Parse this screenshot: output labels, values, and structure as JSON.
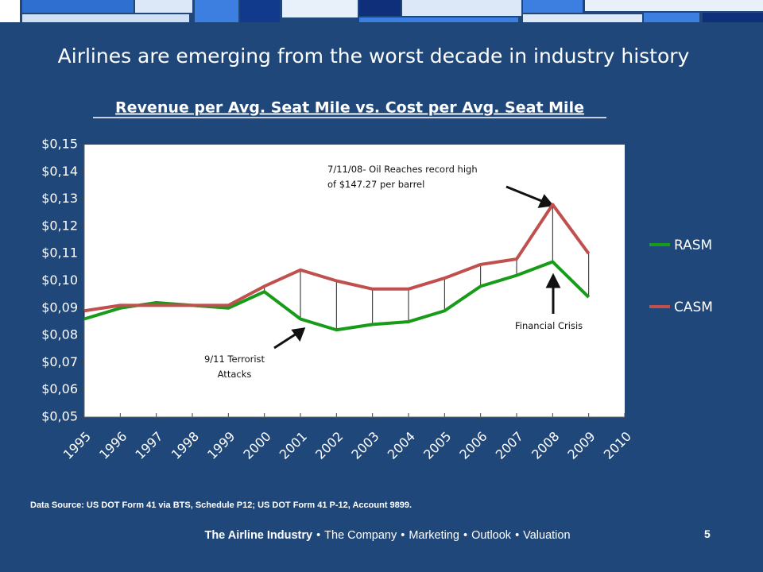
{
  "slide_title": "Airlines are emerging from the worst decade in industry history",
  "chart_data": {
    "type": "line",
    "title": "Revenue per Avg. Seat Mile vs. Cost per Avg. Seat Mile",
    "x": [
      1995,
      1996,
      1997,
      1998,
      1999,
      2000,
      2001,
      2002,
      2003,
      2004,
      2005,
      2006,
      2007,
      2008,
      2009
    ],
    "xlim": [
      1995,
      2010
    ],
    "xticks": [
      1995,
      1996,
      1997,
      1998,
      1999,
      2000,
      2001,
      2002,
      2003,
      2004,
      2005,
      2006,
      2007,
      2008,
      2009,
      2010
    ],
    "ylim": [
      0.05,
      0.15
    ],
    "yticks": [
      {
        "value": 0.05,
        "label": "$0,05"
      },
      {
        "value": 0.06,
        "label": "$0,06"
      },
      {
        "value": 0.07,
        "label": "$0,07"
      },
      {
        "value": 0.08,
        "label": "$0,08"
      },
      {
        "value": 0.09,
        "label": "$0,09"
      },
      {
        "value": 0.1,
        "label": "$0,10"
      },
      {
        "value": 0.11,
        "label": "$0,11"
      },
      {
        "value": 0.12,
        "label": "$0,12"
      },
      {
        "value": 0.13,
        "label": "$0,13"
      },
      {
        "value": 0.14,
        "label": "$0,14"
      },
      {
        "value": 0.15,
        "label": "$0,15"
      }
    ],
    "series": [
      {
        "name": "RASM",
        "color": "#179b18",
        "values": [
          0.086,
          0.09,
          0.092,
          0.091,
          0.09,
          0.096,
          0.086,
          0.082,
          0.084,
          0.085,
          0.089,
          0.098,
          0.102,
          0.107,
          0.094
        ]
      },
      {
        "name": "CASM",
        "color": "#c0504d",
        "values": [
          0.089,
          0.091,
          0.091,
          0.091,
          0.091,
          0.098,
          0.104,
          0.1,
          0.097,
          0.097,
          0.101,
          0.106,
          0.108,
          0.128,
          0.11
        ]
      }
    ],
    "high_low_lines": true,
    "legend": "right",
    "annotations": [
      "7/11/08- Oil Reaches record high of $147.27 per barrel",
      "9/11 Terrorist Attacks",
      "Financial Crisis"
    ]
  },
  "source": "Data Source:  US DOT Form 41 via BTS, Schedule P12; US DOT Form 41 P-12, Account 9899.",
  "nav": {
    "items": [
      "The Airline Industry",
      "The Company",
      "Marketing",
      "Outlook",
      "Valuation"
    ],
    "separator": "•"
  },
  "page_number": "5"
}
